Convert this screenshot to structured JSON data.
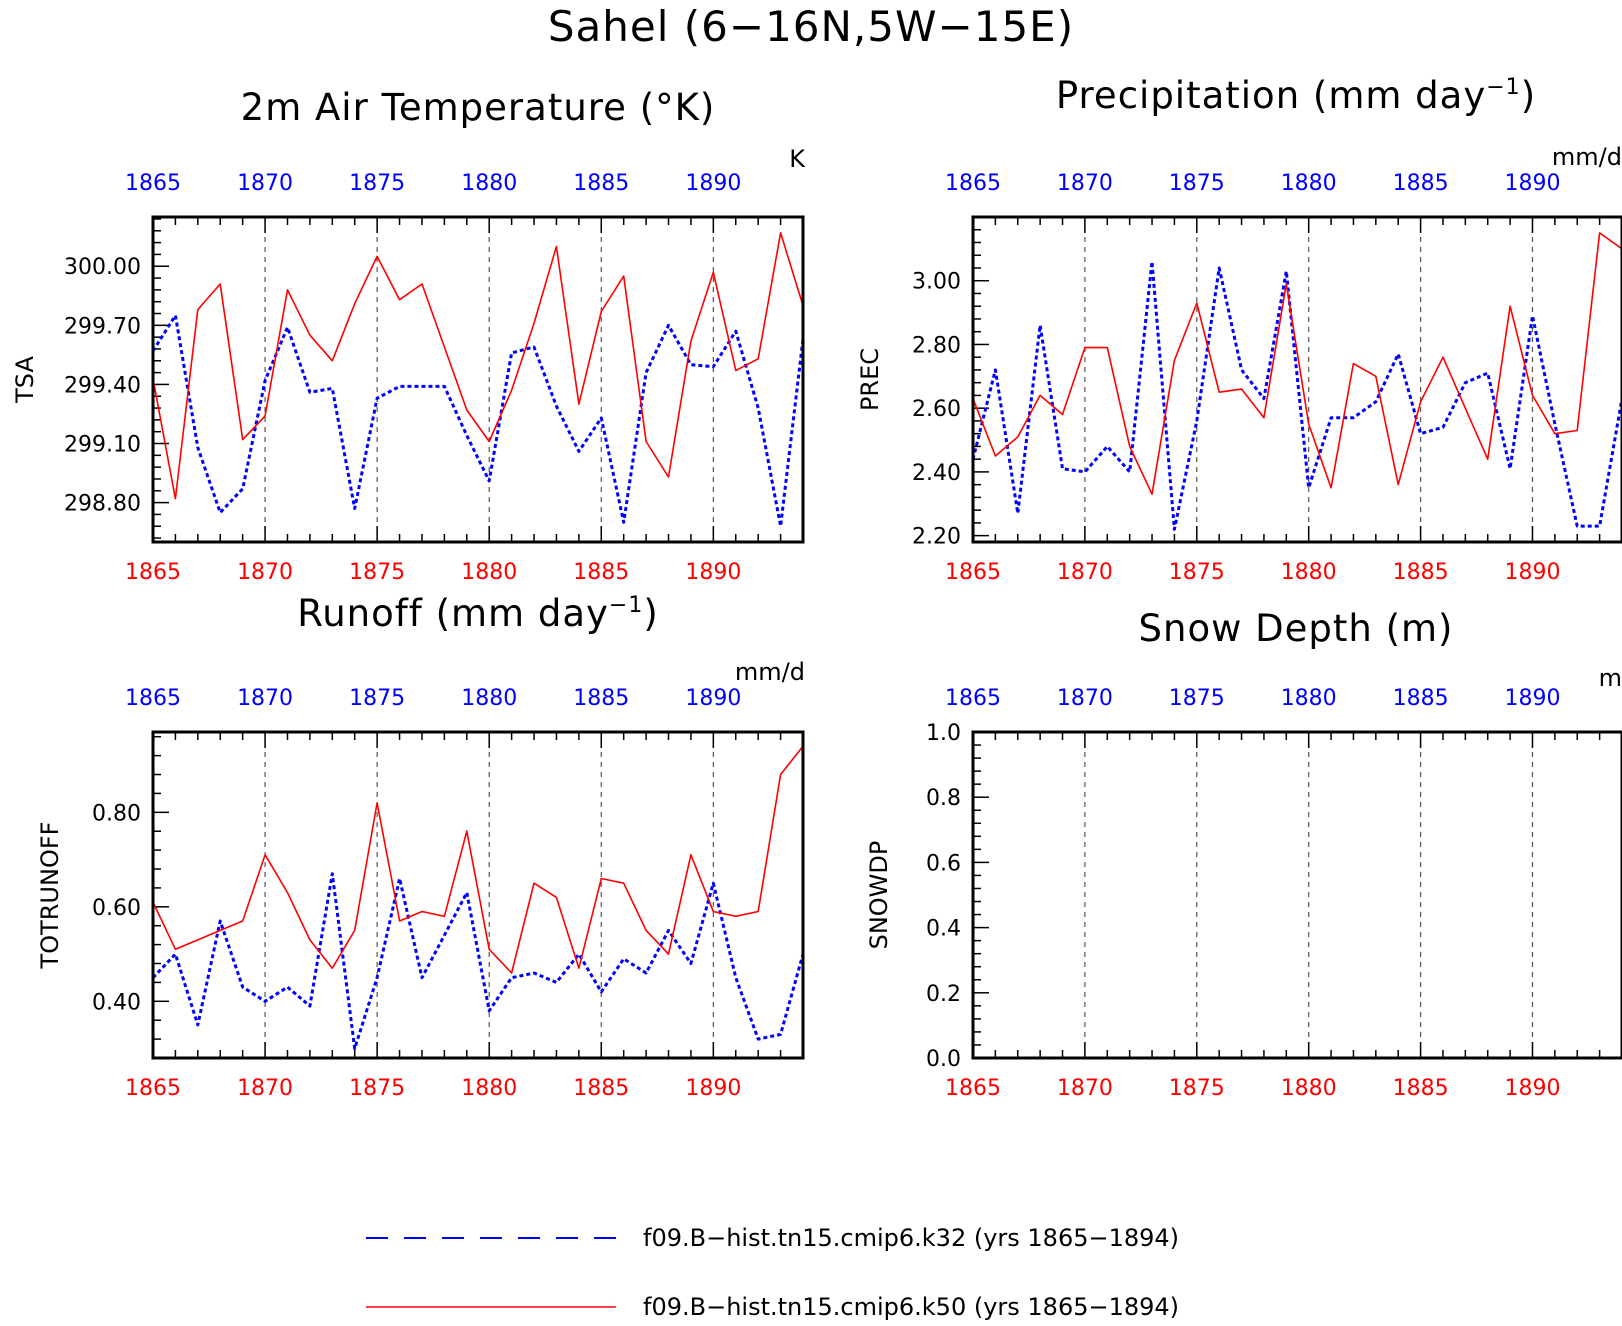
{
  "main_title": "Sahel (6−16N,5W−15E)",
  "colors": {
    "series_k32": "#0000ff",
    "series_k50": "#ff0000",
    "axis": "#000000",
    "grid": "#555555"
  },
  "legend": [
    {
      "label": "f09.B−hist.tn15.cmip6.k32 (yrs 1865−1894)",
      "color": "#0000ff",
      "style": "dashed"
    },
    {
      "label": "f09.B−hist.tn15.cmip6.k50 (yrs 1865−1894)",
      "color": "#ff0000",
      "style": "solid"
    }
  ],
  "chart_data": [
    {
      "type": "line",
      "title": "2m Air Temperature (°K)",
      "units": "K",
      "ylabel": "TSA",
      "xlim": [
        1865,
        1894
      ],
      "ylim": [
        298.6,
        300.25
      ],
      "x_ticks_top": [
        "1865",
        "1870",
        "1875",
        "1880",
        "1885",
        "1890"
      ],
      "x_ticks_bottom": [
        "1865",
        "1870",
        "1875",
        "1880",
        "1885",
        "1890"
      ],
      "y_ticks": [
        "298.80",
        "299.10",
        "299.40",
        "299.70",
        "300.00"
      ],
      "x": [
        1865,
        1866,
        1867,
        1868,
        1869,
        1870,
        1871,
        1872,
        1873,
        1874,
        1875,
        1876,
        1877,
        1878,
        1879,
        1880,
        1881,
        1882,
        1883,
        1884,
        1885,
        1886,
        1887,
        1888,
        1889,
        1890,
        1891,
        1892,
        1893,
        1894
      ],
      "series": [
        {
          "name": "f09.B−hist.tn15.cmip6.k32",
          "color": "#0000ff",
          "style": "dashed",
          "values": [
            299.57,
            299.75,
            299.08,
            298.75,
            298.87,
            299.42,
            299.69,
            299.36,
            299.38,
            298.77,
            299.33,
            299.39,
            299.39,
            299.39,
            299.14,
            298.91,
            299.56,
            299.59,
            299.29,
            299.06,
            299.23,
            298.7,
            299.46,
            299.7,
            299.5,
            299.49,
            299.67,
            299.28,
            298.68,
            299.63
          ]
        },
        {
          "name": "f09.B−hist.tn15.cmip6.k50",
          "color": "#ff0000",
          "style": "solid",
          "values": [
            299.43,
            298.82,
            299.78,
            299.91,
            299.12,
            299.24,
            299.88,
            299.65,
            299.52,
            299.81,
            300.05,
            299.83,
            299.91,
            299.59,
            299.27,
            299.11,
            299.37,
            299.71,
            300.1,
            299.3,
            299.77,
            299.95,
            299.11,
            298.93,
            299.62,
            299.97,
            299.47,
            299.53,
            300.17,
            299.8
          ]
        }
      ]
    },
    {
      "type": "line",
      "title": "Precipitation (mm day",
      "title_superscript": "−1",
      "title_suffix": ")",
      "units": "mm/d",
      "ylabel": "PREC",
      "xlim": [
        1865,
        1894
      ],
      "ylim": [
        2.18,
        3.2
      ],
      "x_ticks_top": [
        "1865",
        "1870",
        "1875",
        "1880",
        "1885",
        "1890"
      ],
      "x_ticks_bottom": [
        "1865",
        "1870",
        "1875",
        "1880",
        "1885",
        "1890"
      ],
      "y_ticks": [
        "2.20",
        "2.40",
        "2.60",
        "2.80",
        "3.00"
      ],
      "x": [
        1865,
        1866,
        1867,
        1868,
        1869,
        1870,
        1871,
        1872,
        1873,
        1874,
        1875,
        1876,
        1877,
        1878,
        1879,
        1880,
        1881,
        1882,
        1883,
        1884,
        1885,
        1886,
        1887,
        1888,
        1889,
        1890,
        1891,
        1892,
        1893,
        1894
      ],
      "series": [
        {
          "name": "f09.B−hist.tn15.cmip6.k32",
          "color": "#0000ff",
          "style": "dashed",
          "values": [
            2.44,
            2.72,
            2.27,
            2.86,
            2.41,
            2.4,
            2.48,
            2.4,
            3.06,
            2.22,
            2.56,
            3.04,
            2.72,
            2.63,
            3.03,
            2.35,
            2.57,
            2.57,
            2.62,
            2.77,
            2.52,
            2.54,
            2.68,
            2.71,
            2.41,
            2.89,
            2.55,
            2.23,
            2.23,
            2.63
          ]
        },
        {
          "name": "f09.B−hist.tn15.cmip6.k50",
          "color": "#ff0000",
          "style": "solid",
          "values": [
            2.63,
            2.45,
            2.51,
            2.64,
            2.58,
            2.79,
            2.79,
            2.48,
            2.33,
            2.75,
            2.93,
            2.65,
            2.66,
            2.57,
            2.99,
            2.55,
            2.35,
            2.74,
            2.7,
            2.36,
            2.62,
            2.76,
            2.6,
            2.44,
            2.92,
            2.64,
            2.52,
            2.53,
            3.15,
            3.1
          ]
        }
      ]
    },
    {
      "type": "line",
      "title": "Runoff (mm day",
      "title_superscript": "−1",
      "title_suffix": ")",
      "units": "mm/d",
      "ylabel": "TOTRUNOFF",
      "xlim": [
        1865,
        1894
      ],
      "ylim": [
        0.28,
        0.97
      ],
      "x_ticks_top": [
        "1865",
        "1870",
        "1875",
        "1880",
        "1885",
        "1890"
      ],
      "x_ticks_bottom": [
        "1865",
        "1870",
        "1875",
        "1880",
        "1885",
        "1890"
      ],
      "y_ticks": [
        "0.40",
        "0.60",
        "0.80"
      ],
      "x": [
        1865,
        1866,
        1867,
        1868,
        1869,
        1870,
        1871,
        1872,
        1873,
        1874,
        1875,
        1876,
        1877,
        1878,
        1879,
        1880,
        1881,
        1882,
        1883,
        1884,
        1885,
        1886,
        1887,
        1888,
        1889,
        1890,
        1891,
        1892,
        1893,
        1894
      ],
      "series": [
        {
          "name": "f09.B−hist.tn15.cmip6.k32",
          "color": "#0000ff",
          "style": "dashed",
          "values": [
            0.45,
            0.5,
            0.35,
            0.57,
            0.43,
            0.4,
            0.43,
            0.39,
            0.67,
            0.3,
            0.45,
            0.66,
            0.45,
            0.54,
            0.63,
            0.38,
            0.45,
            0.46,
            0.44,
            0.5,
            0.42,
            0.49,
            0.46,
            0.55,
            0.48,
            0.65,
            0.45,
            0.32,
            0.33,
            0.5
          ]
        },
        {
          "name": "f09.B−hist.tn15.cmip6.k50",
          "color": "#ff0000",
          "style": "solid",
          "values": [
            0.61,
            0.51,
            0.53,
            0.55,
            0.57,
            0.71,
            0.63,
            0.53,
            0.47,
            0.55,
            0.82,
            0.57,
            0.59,
            0.58,
            0.76,
            0.51,
            0.46,
            0.65,
            0.62,
            0.47,
            0.66,
            0.65,
            0.55,
            0.5,
            0.71,
            0.59,
            0.58,
            0.59,
            0.88,
            0.94
          ]
        }
      ]
    },
    {
      "type": "line",
      "title": "Snow Depth (m)",
      "units": "m",
      "ylabel": "SNOWDP",
      "xlim": [
        1865,
        1894
      ],
      "ylim": [
        0.0,
        1.0
      ],
      "x_ticks_top": [
        "1865",
        "1870",
        "1875",
        "1880",
        "1885",
        "1890"
      ],
      "x_ticks_bottom": [
        "1865",
        "1870",
        "1875",
        "1880",
        "1885",
        "1890"
      ],
      "y_ticks": [
        "0.0",
        "0.2",
        "0.4",
        "0.6",
        "0.8",
        "1.0"
      ],
      "x": [],
      "series": []
    }
  ]
}
